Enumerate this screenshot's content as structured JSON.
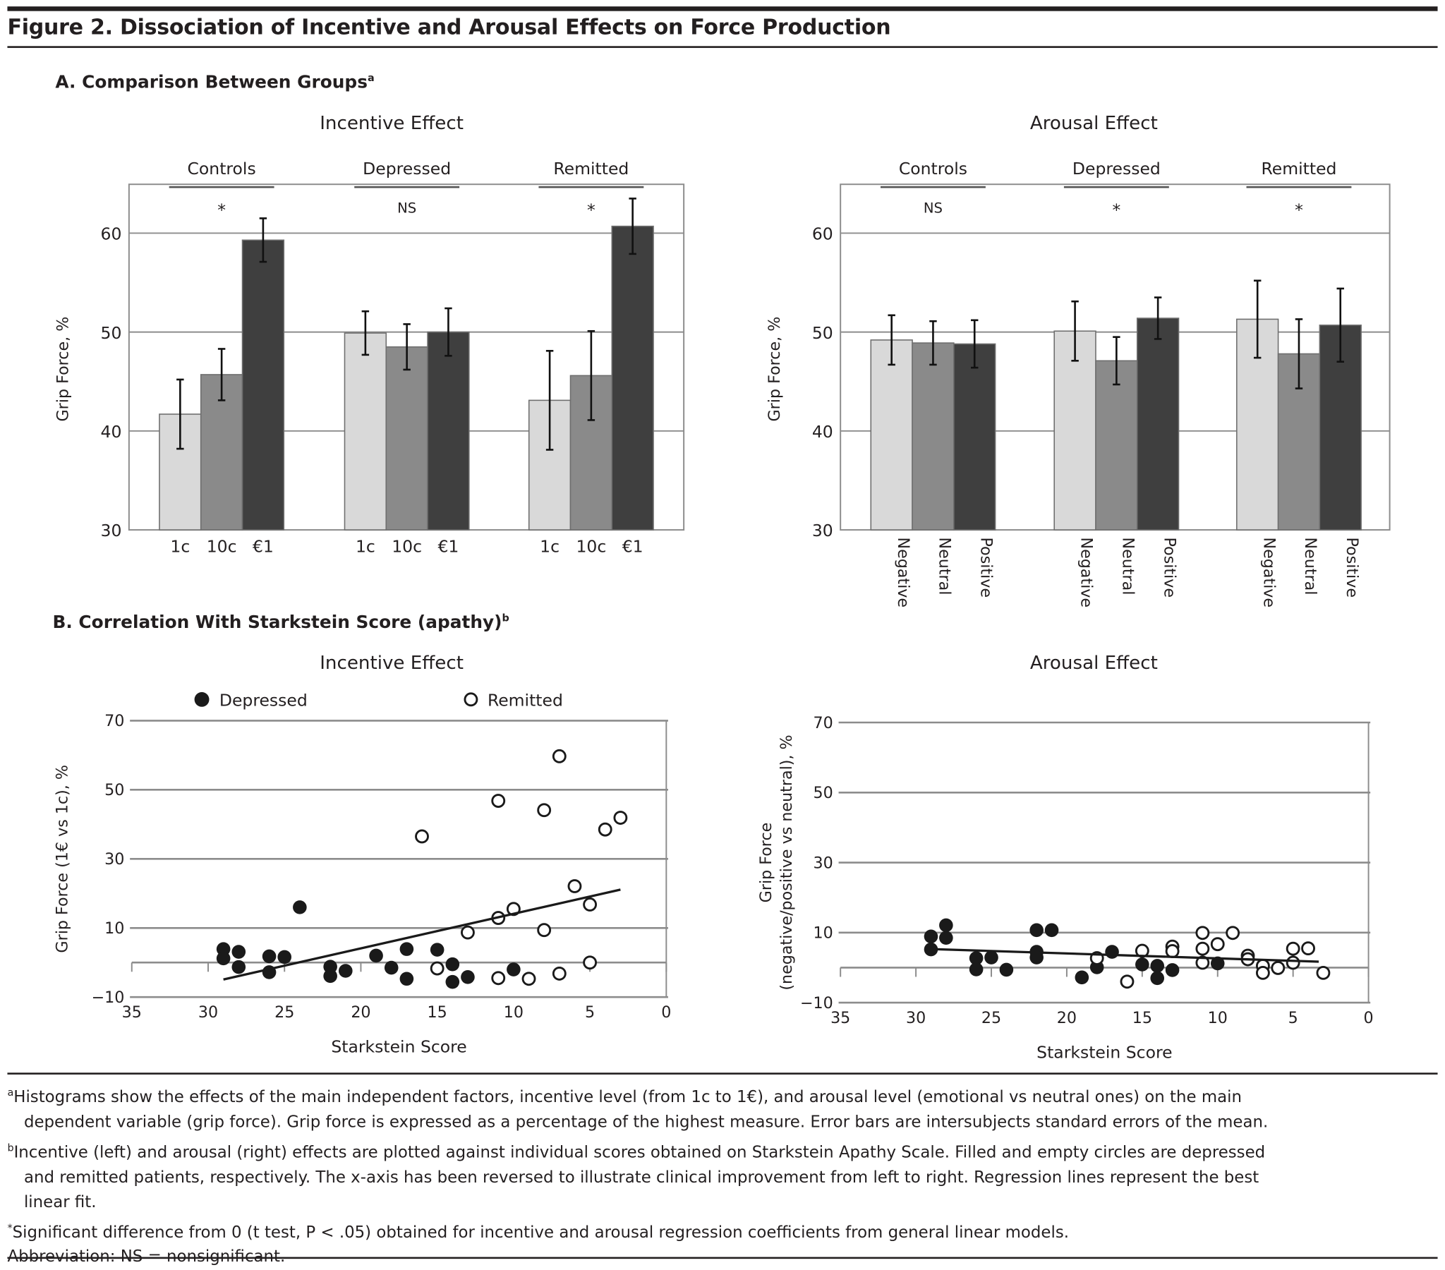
{
  "figure_title": "Figure 2. Dissociation of Incentive and Arousal Effects on Force Production",
  "section_a": {
    "label": "A. Comparison Between Groups",
    "sup": "a"
  },
  "section_b": {
    "label": "B. Correlation With Starkstein Score (apathy)",
    "sup": "b"
  },
  "colors": {
    "light": "#d9d9d9",
    "mid": "#8a8a8a",
    "dark": "#3f3f3f",
    "grid": "#8c8c8c"
  },
  "chart_data": [
    {
      "type": "bar",
      "title": "Incentive Effect",
      "ylabel": "Grip Force, %",
      "ylim": [
        30,
        65
      ],
      "yticks": [
        "30",
        "40",
        "50",
        "60"
      ],
      "groups": [
        "Controls",
        "Depressed",
        "Remitted"
      ],
      "significance": [
        "*",
        "NS",
        "*"
      ],
      "categories": [
        "1c",
        "10c",
        "€1"
      ],
      "series": [
        {
          "name": "1c",
          "values": [
            41.7,
            49.9,
            43.1
          ],
          "errors": [
            3.5,
            2.2,
            5.0
          ]
        },
        {
          "name": "10c",
          "values": [
            45.7,
            48.5,
            45.6
          ],
          "errors": [
            2.6,
            2.3,
            4.5
          ]
        },
        {
          "name": "€1",
          "values": [
            59.3,
            50.0,
            60.7
          ],
          "errors": [
            2.2,
            2.4,
            2.8
          ]
        }
      ]
    },
    {
      "type": "bar",
      "title": "Arousal Effect",
      "ylabel": "Grip Force, %",
      "ylim": [
        30,
        65
      ],
      "yticks": [
        "30",
        "40",
        "50",
        "60"
      ],
      "groups": [
        "Controls",
        "Depressed",
        "Remitted"
      ],
      "significance": [
        "NS",
        "*",
        "*"
      ],
      "categories": [
        "Negative",
        "Neutral",
        "Positive"
      ],
      "series": [
        {
          "name": "Negative",
          "values": [
            49.2,
            50.1,
            51.3
          ],
          "errors": [
            2.5,
            3.0,
            3.9
          ]
        },
        {
          "name": "Neutral",
          "values": [
            48.9,
            47.1,
            47.8
          ],
          "errors": [
            2.2,
            2.4,
            3.5
          ]
        },
        {
          "name": "Positive",
          "values": [
            48.8,
            51.4,
            50.7
          ],
          "errors": [
            2.4,
            2.1,
            3.7
          ]
        }
      ]
    },
    {
      "type": "scatter",
      "title": "Incentive Effect",
      "xlabel": "Starkstein Score",
      "ylabel": "Grip Force (1€ vs 1c), %",
      "xlim": [
        35,
        0
      ],
      "ylim": [
        -10,
        70
      ],
      "xticks": [
        "35",
        "30",
        "25",
        "20",
        "15",
        "10",
        "5",
        "0"
      ],
      "yticks": [
        "70",
        "50",
        "30",
        "10",
        "−10"
      ],
      "legend": [
        "Depressed",
        "Remitted"
      ],
      "series": [
        {
          "name": "Depressed",
          "filled": true,
          "points": [
            [
              29,
              3.9
            ],
            [
              29,
              1.2
            ],
            [
              28,
              3.1
            ],
            [
              28,
              -1.3
            ],
            [
              26,
              1.8
            ],
            [
              26,
              -2.8
            ],
            [
              25,
              1.6
            ],
            [
              24,
              16
            ],
            [
              22,
              -1.2
            ],
            [
              22,
              -3.9
            ],
            [
              21,
              -2.4
            ],
            [
              19,
              2
            ],
            [
              18,
              -1.5
            ],
            [
              17,
              3.9
            ],
            [
              17,
              -4.7
            ],
            [
              15,
              3.7
            ],
            [
              14,
              -0.5
            ],
            [
              14,
              -5.6
            ],
            [
              13,
              -4.2
            ],
            [
              10,
              -2
            ]
          ]
        },
        {
          "name": "Remitted",
          "filled": false,
          "points": [
            [
              16,
              36.5
            ],
            [
              15,
              -1.7
            ],
            [
              13,
              8.7
            ],
            [
              11,
              46.8
            ],
            [
              11,
              12.9
            ],
            [
              11,
              -4.5
            ],
            [
              10,
              15.5
            ],
            [
              9,
              -4.7
            ],
            [
              8,
              44.1
            ],
            [
              8,
              9.4
            ],
            [
              7,
              59.7
            ],
            [
              7,
              -3.2
            ],
            [
              6,
              22.1
            ],
            [
              5,
              16.8
            ],
            [
              5,
              0
            ],
            [
              4,
              38.5
            ],
            [
              3,
              41.9
            ]
          ]
        }
      ],
      "regression": [
        [
          29,
          -4.9
        ],
        [
          3,
          21.1
        ]
      ]
    },
    {
      "type": "scatter",
      "title": "Arousal Effect",
      "xlabel": "Starkstein Score",
      "ylabel": "Grip Force (negative/positive vs neutral), %",
      "ylabel_lines": [
        "Grip Force",
        "(negative/positive vs neutral), %"
      ],
      "xlim": [
        35,
        0
      ],
      "ylim": [
        -10,
        70
      ],
      "xticks": [
        "35",
        "30",
        "25",
        "20",
        "15",
        "10",
        "5",
        "0"
      ],
      "yticks": [
        "70",
        "50",
        "30",
        "10",
        "−10"
      ],
      "series": [
        {
          "name": "Depressed",
          "filled": true,
          "points": [
            [
              29,
              8.9
            ],
            [
              29,
              5.2
            ],
            [
              28,
              12.1
            ],
            [
              28,
              8.5
            ],
            [
              26,
              2.7
            ],
            [
              26,
              -0.5
            ],
            [
              25,
              2.9
            ],
            [
              24,
              -0.6
            ],
            [
              22,
              10.7
            ],
            [
              22,
              4.5
            ],
            [
              22,
              2.9
            ],
            [
              21,
              10.7
            ],
            [
              19,
              -2.8
            ],
            [
              18,
              0.1
            ],
            [
              17,
              4.5
            ],
            [
              15,
              0.9
            ],
            [
              14,
              0.5
            ],
            [
              14,
              -3
            ],
            [
              13,
              -0.7
            ],
            [
              10,
              1.2
            ]
          ]
        },
        {
          "name": "Remitted",
          "filled": false,
          "points": [
            [
              18,
              2.7
            ],
            [
              16,
              -4
            ],
            [
              15,
              4.8
            ],
            [
              13,
              6
            ],
            [
              13,
              4.7
            ],
            [
              11,
              9.9
            ],
            [
              11,
              5.4
            ],
            [
              11,
              1.4
            ],
            [
              10,
              6.7
            ],
            [
              9,
              9.9
            ],
            [
              8,
              3.4
            ],
            [
              8,
              2.4
            ],
            [
              7,
              0.5
            ],
            [
              7,
              -1.5
            ],
            [
              6,
              -0.1
            ],
            [
              5,
              5.4
            ],
            [
              5,
              1.4
            ],
            [
              4,
              5.5
            ],
            [
              3,
              -1.5
            ]
          ]
        }
      ],
      "regression": [
        [
          29,
          5.3
        ],
        [
          3.3,
          1.7
        ]
      ]
    }
  ],
  "footnotes": {
    "a_sup": "a",
    "a_line1": "Histograms show the effects of the main independent factors, incentive level (from 1c to 1€), and arousal level (emotional vs neutral ones) on the main",
    "a_line2": "dependent variable (grip force). Grip force is expressed as a percentage of the highest measure. Error bars are intersubjects standard errors of the mean.",
    "b_sup": "b",
    "b_line1": "Incentive (left) and arousal (right) effects are plotted against individual scores obtained on Starkstein Apathy Scale. Filled and empty circles are depressed",
    "b_line2": "and remitted patients, respectively. The x-axis has been reversed to illustrate clinical improvement from left to right. Regression lines represent the best",
    "b_line3": "linear fit.",
    "star_sup": "*",
    "star_text": "Significant difference from 0 (t test, P < .05) obtained for incentive and arousal regression coefficients from general linear models.",
    "abbrev": "Abbreviation: NS = nonsignificant."
  }
}
